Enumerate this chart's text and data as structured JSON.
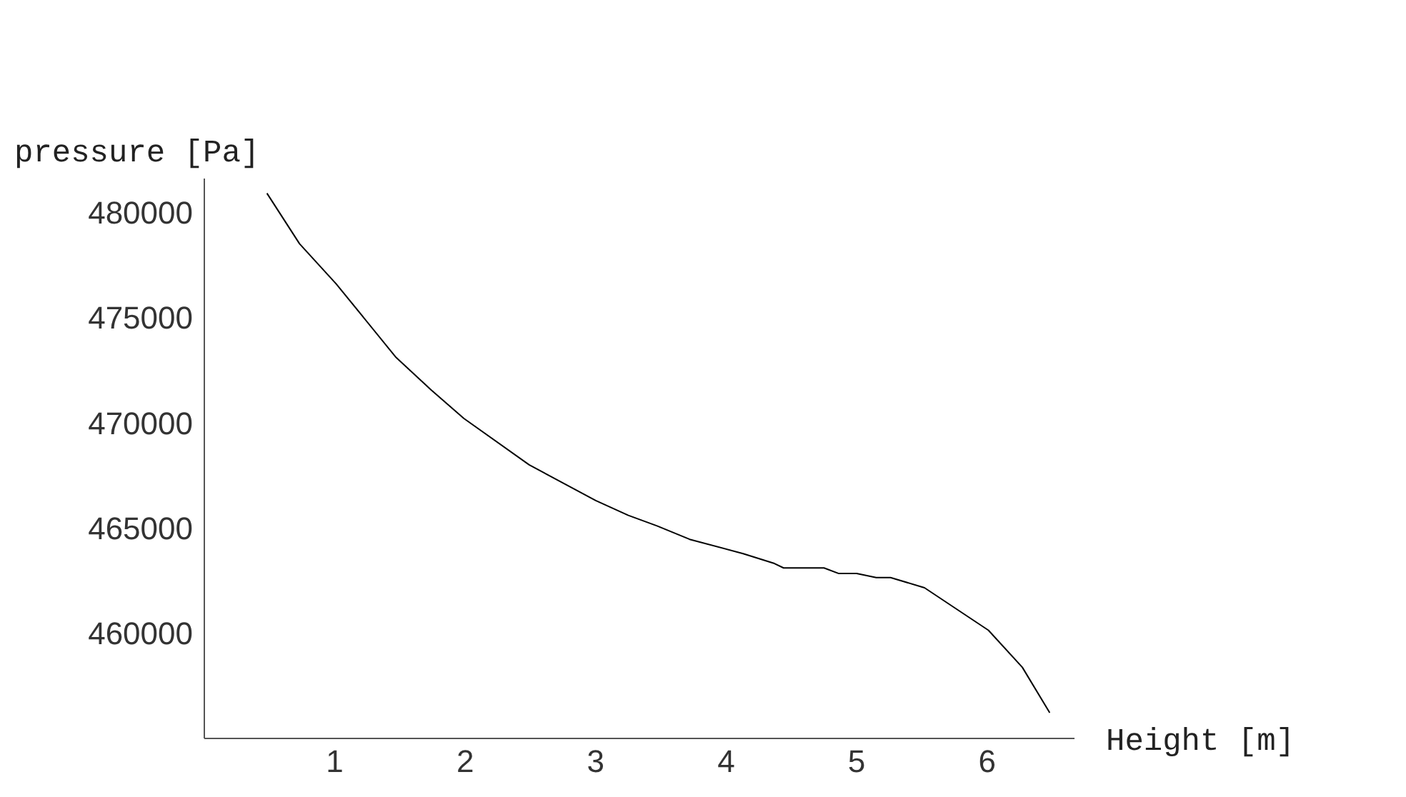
{
  "chart_data": {
    "type": "line",
    "xlabel": "Height [m]",
    "ylabel": "pressure [Pa]",
    "x": [
      0.48,
      0.73,
      1.01,
      1.47,
      1.74,
      1.99,
      2.49,
      3.0,
      3.25,
      3.47,
      3.72,
      4.13,
      4.37,
      4.44,
      4.75,
      4.86,
      5.0,
      5.15,
      5.26,
      5.52,
      6.01,
      6.27,
      6.48
    ],
    "values": [
      480900,
      478500,
      476600,
      473100,
      471550,
      470200,
      468000,
      466300,
      465600,
      465100,
      464460,
      463780,
      463310,
      463100,
      463100,
      462840,
      462840,
      462640,
      462640,
      462160,
      460140,
      458380,
      456220
    ],
    "color": "#000000",
    "xlim": [
      0,
      6.67
    ],
    "xticks": [
      1,
      2,
      3,
      4,
      5,
      6
    ],
    "ylim": [
      455000,
      481600
    ],
    "yticks": [
      460000,
      465000,
      470000,
      475000,
      480000
    ],
    "grid": false,
    "legend": false,
    "marker": "none"
  }
}
